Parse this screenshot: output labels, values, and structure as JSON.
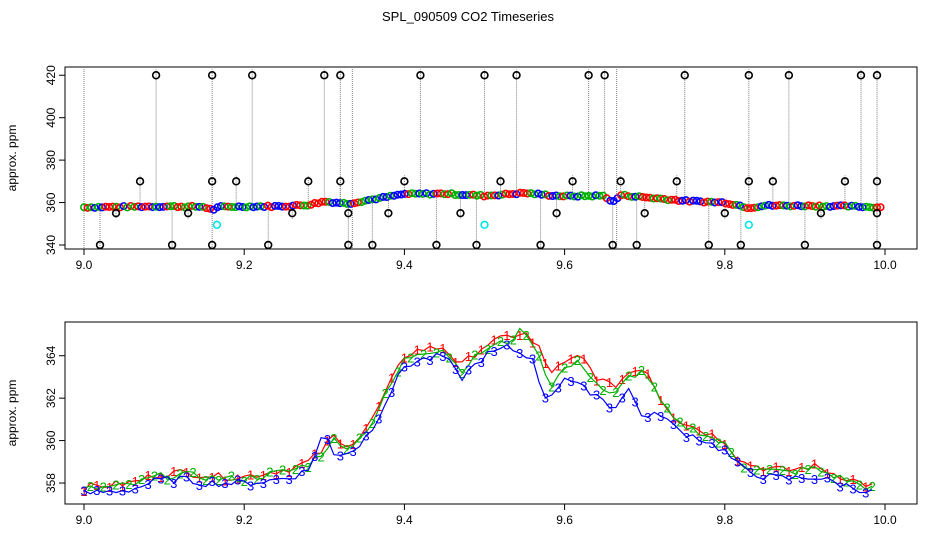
{
  "title": "SPL_090509  CO2 Timeseries",
  "colors": {
    "series1": "#ff0000",
    "series2": "#00b000",
    "series3": "#0000ff",
    "flag_low": "#00e5e5",
    "outlier": "#000000",
    "line": "#808080"
  },
  "chart_data": [
    {
      "type": "scatter",
      "ylabel": "approx. ppm",
      "xlabel": "",
      "xlim": [
        9.0,
        10.0
      ],
      "ylim": [
        340,
        422
      ],
      "xticks": [
        "9.0",
        "9.2",
        "9.4",
        "9.6",
        "9.8",
        "10.0"
      ],
      "yticks": [
        "340",
        "360",
        "380",
        "400",
        "420"
      ],
      "grid": false,
      "base_series": {
        "x": [
          9.0,
          9.05,
          9.1,
          9.15,
          9.16,
          9.17,
          9.2,
          9.25,
          9.28,
          9.3,
          9.33,
          9.36,
          9.4,
          9.45,
          9.5,
          9.55,
          9.58,
          9.6,
          9.65,
          9.66,
          9.67,
          9.7,
          9.75,
          9.8,
          9.82,
          9.83,
          9.85,
          9.9,
          9.95,
          9.99
        ],
        "y": [
          357.8,
          358.0,
          358.2,
          358.0,
          356.5,
          358.0,
          358.1,
          358.3,
          358.9,
          360.5,
          359.5,
          361.5,
          364.0,
          364.2,
          363.2,
          364.5,
          363.5,
          363.0,
          363.2,
          360.0,
          363.5,
          362.5,
          360.8,
          360.0,
          358.5,
          357.5,
          358.6,
          358.5,
          358.3,
          357.8
        ]
      },
      "outliers_high": {
        "x": [
          9.09,
          9.16,
          9.21,
          9.3,
          9.32,
          9.42,
          9.5,
          9.54,
          9.63,
          9.65,
          9.75,
          9.83,
          9.88,
          9.97,
          9.99
        ],
        "y": [
          420,
          420,
          420,
          420,
          420,
          420,
          420,
          420,
          420,
          420,
          420,
          420,
          420,
          420,
          420
        ]
      },
      "outliers_mid": {
        "x": [
          9.07,
          9.16,
          9.19,
          9.28,
          9.32,
          9.4,
          9.52,
          9.61,
          9.67,
          9.74,
          9.83,
          9.86,
          9.95,
          9.99
        ],
        "y": [
          370,
          370,
          370,
          370,
          370,
          370,
          370,
          370,
          370,
          370,
          370,
          370,
          370,
          370
        ]
      },
      "outliers_low": {
        "x": [
          9.02,
          9.11,
          9.16,
          9.23,
          9.33,
          9.36,
          9.44,
          9.49,
          9.57,
          9.66,
          9.69,
          9.78,
          9.82,
          9.9,
          9.99
        ],
        "y": [
          340,
          340,
          340,
          340,
          340,
          340,
          340,
          340,
          340,
          340,
          340,
          340,
          340,
          340,
          340
        ]
      },
      "outliers_355": {
        "x": [
          9.04,
          9.13,
          9.26,
          9.33,
          9.38,
          9.47,
          9.59,
          9.7,
          9.8,
          9.92,
          9.99
        ],
        "y": [
          355,
          355,
          355,
          355,
          355,
          355,
          355,
          355,
          355,
          355,
          355
        ]
      },
      "flag_low": {
        "x": [
          9.166,
          9.5,
          9.83
        ],
        "y": [
          349.5,
          349.5,
          349.5
        ]
      }
    },
    {
      "type": "line",
      "ylabel": "approx. ppm",
      "xlabel": "",
      "xlim": [
        9.0,
        10.0
      ],
      "ylim": [
        357.2,
        365.4
      ],
      "xticks": [
        "9.0",
        "9.2",
        "9.4",
        "9.6",
        "9.8",
        "10.0"
      ],
      "yticks": [
        "358",
        "360",
        "362",
        "364"
      ],
      "grid": false,
      "series": [
        {
          "name": "1",
          "x": [
            9.0,
            9.03,
            9.06,
            9.09,
            9.12,
            9.15,
            9.17,
            9.2,
            9.23,
            9.26,
            9.28,
            9.3,
            9.31,
            9.32,
            9.34,
            9.36,
            9.38,
            9.4,
            9.42,
            9.45,
            9.47,
            9.5,
            9.53,
            9.55,
            9.56,
            9.57,
            9.58,
            9.6,
            9.62,
            9.64,
            9.66,
            9.68,
            9.7,
            9.72,
            9.74,
            9.77,
            9.8,
            9.82,
            9.85,
            9.88,
            9.91,
            9.94,
            9.97,
            9.99
          ],
          "y": [
            357.8,
            357.9,
            358.0,
            358.4,
            358.5,
            358.4,
            358.3,
            358.3,
            358.5,
            358.7,
            359.0,
            359.6,
            360.3,
            359.8,
            360.0,
            361.0,
            362.5,
            364.0,
            364.3,
            364.4,
            363.5,
            364.5,
            364.9,
            365.1,
            364.6,
            364.3,
            363.2,
            363.6,
            364.0,
            363.0,
            362.5,
            363.2,
            363.5,
            362.0,
            361.0,
            360.5,
            360.0,
            359.0,
            358.7,
            358.6,
            358.8,
            358.4,
            358.0,
            357.8
          ]
        },
        {
          "name": "2",
          "x": [
            9.0,
            9.03,
            9.06,
            9.09,
            9.12,
            9.15,
            9.17,
            9.2,
            9.23,
            9.26,
            9.28,
            9.3,
            9.31,
            9.32,
            9.34,
            9.36,
            9.38,
            9.4,
            9.42,
            9.45,
            9.47,
            9.5,
            9.53,
            9.55,
            9.56,
            9.57,
            9.58,
            9.6,
            9.62,
            9.64,
            9.66,
            9.68,
            9.7,
            9.72,
            9.74,
            9.77,
            9.8,
            9.82,
            9.85,
            9.88,
            9.91,
            9.94,
            9.97,
            9.99
          ],
          "y": [
            357.7,
            357.8,
            357.9,
            358.3,
            358.4,
            358.3,
            358.2,
            358.2,
            358.4,
            358.6,
            358.9,
            359.5,
            360.1,
            359.7,
            359.9,
            360.9,
            362.4,
            363.8,
            364.2,
            364.3,
            363.3,
            364.3,
            364.7,
            365.3,
            364.4,
            364.1,
            362.5,
            363.4,
            363.7,
            362.7,
            362.0,
            363.0,
            363.3,
            361.8,
            360.8,
            360.4,
            359.8,
            358.9,
            358.6,
            358.5,
            358.7,
            358.3,
            357.9,
            357.7
          ]
        },
        {
          "name": "3",
          "x": [
            9.0,
            9.03,
            9.06,
            9.09,
            9.12,
            9.15,
            9.17,
            9.2,
            9.23,
            9.26,
            9.28,
            9.3,
            9.31,
            9.32,
            9.34,
            9.36,
            9.38,
            9.4,
            9.42,
            9.45,
            9.47,
            9.5,
            9.53,
            9.55,
            9.56,
            9.57,
            9.58,
            9.6,
            9.62,
            9.64,
            9.66,
            9.68,
            9.7,
            9.72,
            9.74,
            9.77,
            9.8,
            9.82,
            9.85,
            9.88,
            9.91,
            9.94,
            9.97,
            9.99
          ],
          "y": [
            357.5,
            357.6,
            357.7,
            358.1,
            358.2,
            358.0,
            358.0,
            358.0,
            358.1,
            358.3,
            358.6,
            360.5,
            359.3,
            359.4,
            359.6,
            360.6,
            362.1,
            363.5,
            363.8,
            364.0,
            362.9,
            364.0,
            364.4,
            364.0,
            364.0,
            362.3,
            362.0,
            363.0,
            362.5,
            362.2,
            361.5,
            362.4,
            361.0,
            361.3,
            360.5,
            360.1,
            359.5,
            358.7,
            358.3,
            358.2,
            358.3,
            358.0,
            357.7,
            357.5
          ]
        }
      ]
    }
  ]
}
